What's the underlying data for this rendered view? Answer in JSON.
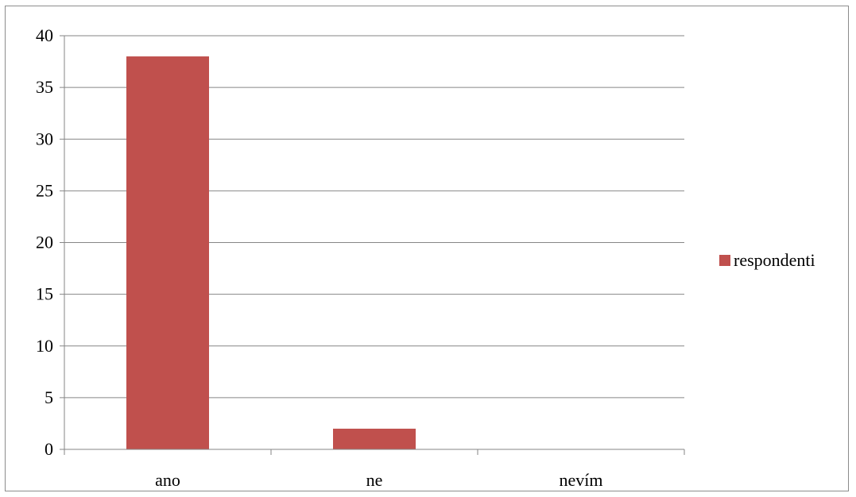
{
  "chart_data": {
    "type": "bar",
    "categories": [
      "ano",
      "ne",
      "nevím"
    ],
    "series": [
      {
        "name": "respondenti",
        "values": [
          38,
          2,
          0
        ],
        "color": "#C0504D"
      }
    ],
    "title": "",
    "xlabel": "",
    "ylabel": "",
    "ylim": [
      0,
      40
    ],
    "yticks": [
      0,
      5,
      10,
      15,
      20,
      25,
      30,
      35,
      40
    ],
    "grid": true,
    "legend_position": "right",
    "colors": {
      "bar": "#C0504D",
      "gridline": "#868686",
      "axis": "#868686",
      "text": "#000000"
    }
  }
}
